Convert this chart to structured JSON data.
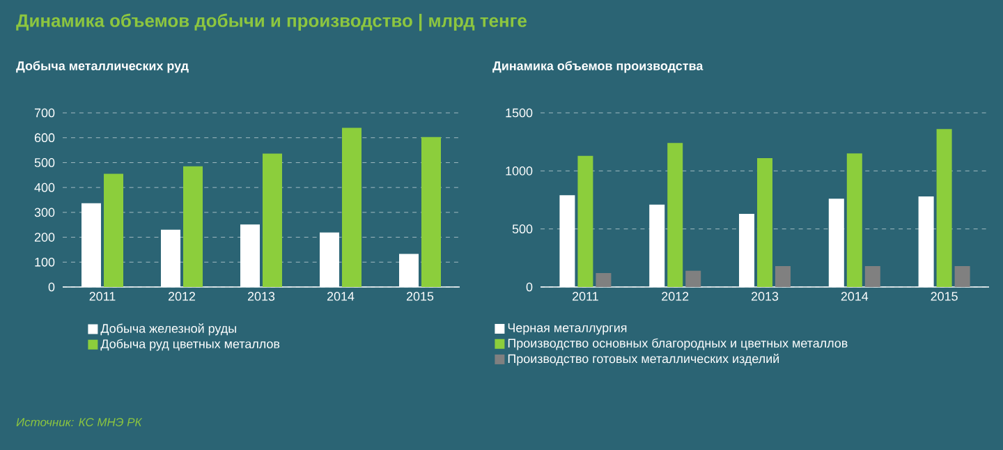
{
  "chart_data": [
    {
      "type": "bar",
      "title": "Динамика объемов добычи и производство | млрд тенге",
      "subtitle": "Добыча металлических руд",
      "categories": [
        "2011",
        "2012",
        "2013",
        "2014",
        "2015"
      ],
      "series": [
        {
          "name": "Добыча железной руды",
          "color": "#ffffff",
          "values": [
            337,
            230,
            251,
            219,
            133
          ]
        },
        {
          "name": "Добыча руд цветных металлов",
          "color": "#8cce3c",
          "values": [
            455,
            485,
            536,
            640,
            603
          ]
        }
      ],
      "ylim": [
        0,
        700
      ],
      "yticks": [
        0,
        100,
        200,
        300,
        400,
        500,
        600,
        700
      ],
      "grid": "y",
      "legend": "bottom",
      "annotations": [
        "Источник: КС МНЭ РК"
      ]
    },
    {
      "type": "bar",
      "title": "Динамика  объемов производства",
      "categories": [
        "2011",
        "2012",
        "2013",
        "2014",
        "2015"
      ],
      "series": [
        {
          "name": "Черная металлургия",
          "color": "#ffffff",
          "values": [
            790,
            710,
            630,
            760,
            780
          ]
        },
        {
          "name": "Производство основных благородных и цветных металлов",
          "color": "#8cce3c",
          "values": [
            1130,
            1240,
            1110,
            1150,
            1360
          ]
        },
        {
          "name": "Производство готовых металлических изделий",
          "color": "#808080",
          "values": [
            120,
            140,
            180,
            180,
            180
          ]
        }
      ],
      "ylim": [
        0,
        1500
      ],
      "yticks": [
        0,
        500,
        1000,
        1500
      ],
      "grid": "y",
      "legend": "bottom"
    }
  ]
}
